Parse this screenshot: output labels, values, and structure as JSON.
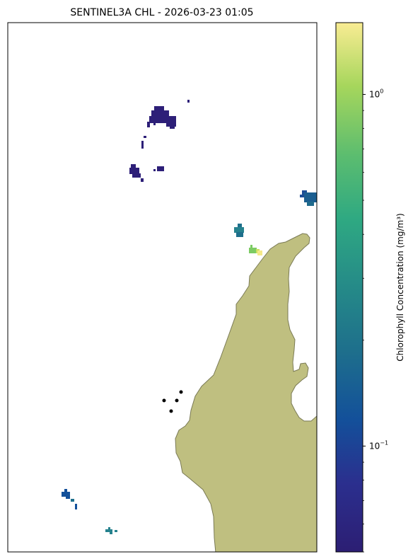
{
  "chart_data": {
    "type": "heatmap",
    "title": "SENTINEL3A CHL - 2026-03-23 01:05",
    "xlabel": "",
    "ylabel": "",
    "grid": false,
    "colorbar": {
      "label": "Chlorophyll Concentration (mg/m³)",
      "scale": "log",
      "colormap": "viridis",
      "range": [
        0.05,
        1.6
      ],
      "ticks": [
        {
          "value": 1.0,
          "base": "10",
          "exp": "0"
        },
        {
          "value": 0.1,
          "base": "10",
          "exp": "−1"
        }
      ]
    },
    "colors": {
      "land_fill": "#bfbf80",
      "land_edge": "#7a7a55",
      "markers": "#000000"
    }
  }
}
